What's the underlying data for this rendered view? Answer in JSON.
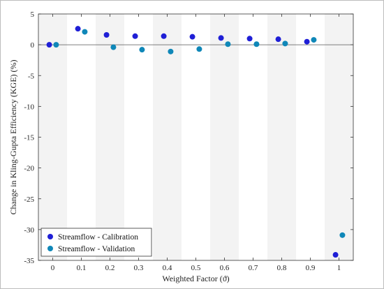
{
  "chart_data": {
    "type": "scatter",
    "title": "",
    "xlabel": "Weighted Factor (ϑ)",
    "ylabel": "Change in Kling-Gupta Efficiency (KGE) (%)",
    "xlim": [
      -0.05,
      1.05
    ],
    "ylim": [
      -35,
      5
    ],
    "x_ticks": [
      0,
      0.1,
      0.2,
      0.3,
      0.4,
      0.5,
      0.6,
      0.7,
      0.8,
      0.9,
      1
    ],
    "x_tick_labels": [
      "0",
      "0.1",
      "0.2",
      "0.3",
      "0.4",
      "0.5",
      "0.6",
      "0.7",
      "0.8",
      "0.9",
      "1"
    ],
    "y_ticks": [
      5,
      0,
      -5,
      -10,
      -15,
      -20,
      -25,
      -30,
      -35
    ],
    "y_tick_labels": [
      "5",
      "0",
      "-5",
      "-10",
      "-15",
      "-20",
      "-25",
      "-30",
      "-35"
    ],
    "grid": false,
    "shaded_bands": true,
    "zero_line": true,
    "legend_position": "bottom-left",
    "categories": [
      0,
      0.1,
      0.2,
      0.3,
      0.4,
      0.5,
      0.6,
      0.7,
      0.8,
      0.9,
      1
    ],
    "series": [
      {
        "name": "Streamflow - Calibration",
        "color": "#1f1fd6",
        "x": [
          0,
          0.1,
          0.2,
          0.3,
          0.4,
          0.5,
          0.6,
          0.7,
          0.8,
          0.9,
          1
        ],
        "values": [
          0.0,
          2.6,
          1.6,
          1.4,
          1.4,
          1.3,
          1.1,
          1.0,
          0.9,
          0.5,
          -34.1
        ]
      },
      {
        "name": "Streamflow - Validation",
        "color": "#0f87b8",
        "x": [
          0,
          0.1,
          0.2,
          0.3,
          0.4,
          0.5,
          0.6,
          0.7,
          0.8,
          0.9,
          1
        ],
        "values": [
          0.0,
          2.1,
          -0.4,
          -0.8,
          -1.1,
          -0.7,
          0.1,
          0.1,
          0.2,
          0.8,
          -30.9
        ]
      }
    ]
  }
}
